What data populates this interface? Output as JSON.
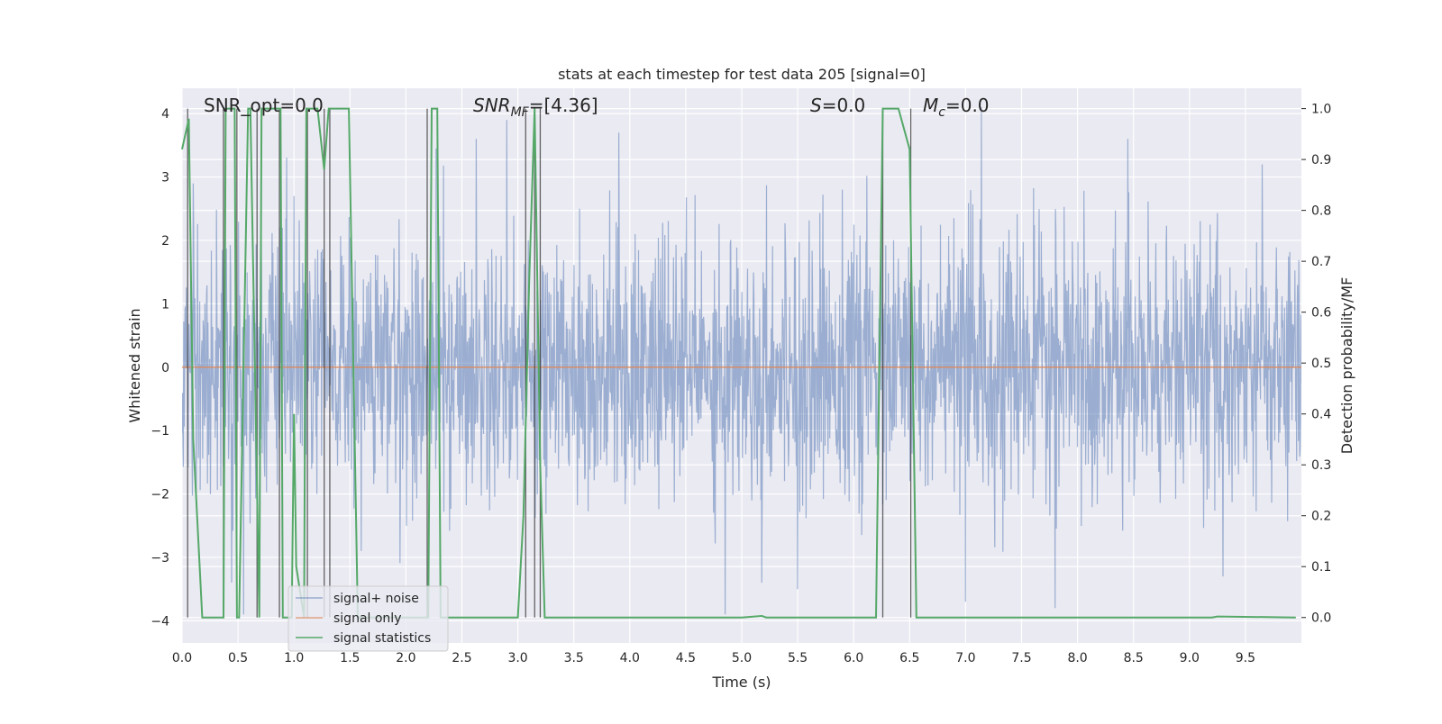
{
  "chart_data": {
    "type": "line",
    "title": "stats at each timestep for test data 205 [signal=0]",
    "xlabel": "Time (s)",
    "ylabel": "Whitened strain",
    "y2label": "Detection probability/MF",
    "xlim": [
      0.0,
      10.0
    ],
    "ylim": [
      -4.35,
      4.4
    ],
    "y2lim": [
      -0.05,
      1.04
    ],
    "x_ticks": [
      "0.0",
      "0.5",
      "1.0",
      "1.5",
      "2.0",
      "2.5",
      "3.0",
      "3.5",
      "4.0",
      "4.5",
      "5.0",
      "5.5",
      "6.0",
      "6.5",
      "7.0",
      "7.5",
      "8.0",
      "8.5",
      "9.0",
      "9.5"
    ],
    "y_ticks": [
      "4",
      "3",
      "2",
      "1",
      "0",
      "−1",
      "−2",
      "−3",
      "−4"
    ],
    "y2_ticks": [
      "1.0",
      "0.9",
      "0.8",
      "0.7",
      "0.6",
      "0.5",
      "0.4",
      "0.3",
      "0.2",
      "0.1",
      "0.0"
    ],
    "grid": true,
    "legend_position": "lower-left",
    "annotations": {
      "snr_opt": "SNR_opt=0.0",
      "snr_mf": "=[4.36]",
      "s": "=0.0",
      "mc": "=0.0"
    },
    "series": [
      {
        "name": "signal+ noise",
        "axis": "left",
        "description": "whitened noise, approx. Gaussian with std 1, range about -4 to 4",
        "color": "#4c72b0"
      },
      {
        "name": "signal only",
        "axis": "left",
        "x": [
          0.0,
          10.0
        ],
        "y": [
          0.0,
          0.0
        ],
        "color": "#dd8452"
      },
      {
        "name": "signal statistics",
        "axis": "right",
        "color": "#55a868",
        "x": [
          0.0,
          0.06,
          0.1,
          0.18,
          0.37,
          0.39,
          0.47,
          0.49,
          0.51,
          0.59,
          0.61,
          0.69,
          0.71,
          0.75,
          0.88,
          0.9,
          0.98,
          1.0,
          1.02,
          1.09,
          1.11,
          1.19,
          1.21,
          1.27,
          1.31,
          1.35,
          1.4,
          1.49,
          1.57,
          1.65,
          2.1,
          2.2,
          2.23,
          2.28,
          2.31,
          2.34,
          3.0,
          3.05,
          3.1,
          3.15,
          3.2,
          3.24,
          3.26,
          5.0,
          5.18,
          5.22,
          6.2,
          6.26,
          6.4,
          6.5,
          6.56,
          6.58,
          7.8,
          9.2,
          9.25,
          9.95
        ],
        "y": [
          0.92,
          0.98,
          0.35,
          0.0,
          0.0,
          1.0,
          1.0,
          0.0,
          0.0,
          1.0,
          1.0,
          0.0,
          1.0,
          1.0,
          1.0,
          0.0,
          0.0,
          0.4,
          0.1,
          0.0,
          1.0,
          1.0,
          1.0,
          0.88,
          1.0,
          1.0,
          1.0,
          1.0,
          0.0,
          0.0,
          0.0,
          0.0,
          1.0,
          1.0,
          0.0,
          0.0,
          0.0,
          0.2,
          0.65,
          1.0,
          0.3,
          0.0,
          0.0,
          0.0,
          0.003,
          0.0,
          0.0,
          1.0,
          1.0,
          0.92,
          0.0,
          0.0,
          0.0,
          0.0,
          0.002,
          0.0
        ]
      }
    ],
    "vlines": [
      0.05,
      0.37,
      0.49,
      0.67,
      0.87,
      1.12,
      1.27,
      1.32,
      2.19,
      3.07,
      3.15,
      3.2,
      6.26,
      6.51
    ],
    "noise_peaks": [
      {
        "x": 0.1,
        "y": 2.9
      },
      {
        "x": 0.55,
        "y": -3.9
      },
      {
        "x": 1.0,
        "y": 2.7
      },
      {
        "x": 1.6,
        "y": -2.9
      },
      {
        "x": 2.27,
        "y": 3.45
      },
      {
        "x": 2.9,
        "y": 3.9
      },
      {
        "x": 3.55,
        "y": 2.5
      },
      {
        "x": 3.9,
        "y": 3.7
      },
      {
        "x": 4.85,
        "y": -3.9
      },
      {
        "x": 5.18,
        "y": -3.4
      },
      {
        "x": 5.5,
        "y": -3.5
      },
      {
        "x": 5.9,
        "y": 2.8
      },
      {
        "x": 7.14,
        "y": 4.1
      },
      {
        "x": 7.0,
        "y": -3.7
      },
      {
        "x": 7.8,
        "y": -3.8
      },
      {
        "x": 8.45,
        "y": 3.6
      },
      {
        "x": 9.3,
        "y": -3.3
      },
      {
        "x": 9.65,
        "y": 3.2
      }
    ]
  },
  "legend": {
    "items": [
      {
        "label": "signal+ noise",
        "color": "#4c72b0"
      },
      {
        "label": "signal only",
        "color": "#dd8452"
      },
      {
        "label": "signal statistics",
        "color": "#55a868"
      }
    ]
  }
}
